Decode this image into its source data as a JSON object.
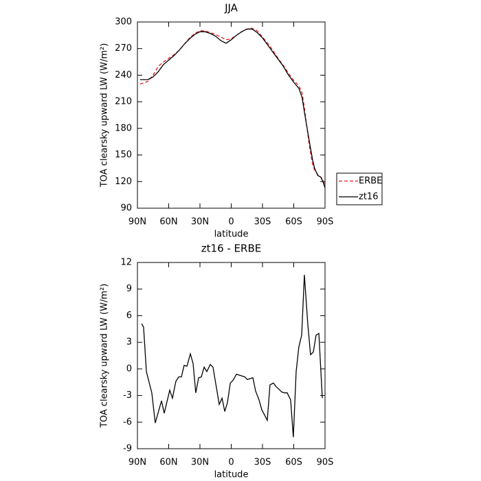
{
  "chart_data": [
    {
      "type": "line",
      "title": "JJA",
      "x_label": "latitude",
      "y_label": "TOA clearsky upward LW (W/m²)",
      "x": [
        87.5,
        80,
        75,
        70,
        65,
        60,
        55,
        50,
        45,
        40,
        35,
        30,
        25,
        20,
        15,
        10,
        5,
        0,
        -5,
        -10,
        -15,
        -20,
        -25,
        -30,
        -35,
        -40,
        -45,
        -50,
        -55,
        -60,
        -65,
        -68,
        -70,
        -75,
        -78,
        -80,
        -83,
        -86,
        -88,
        -90
      ],
      "series": [
        {
          "name": "ERBE",
          "color": "#e8191b",
          "line_style": "dashed",
          "values": [
            230,
            233,
            240,
            250,
            255,
            259,
            263,
            268,
            275,
            282,
            287,
            290,
            290,
            288,
            286,
            283,
            280,
            281,
            285,
            289,
            292,
            293,
            290,
            283,
            276,
            268,
            259,
            251,
            242,
            234,
            228,
            220,
            205,
            160,
            140,
            133,
            128,
            125,
            122,
            115
          ]
        },
        {
          "name": "zt16",
          "color": "#000000",
          "line_style": "solid",
          "values": [
            235,
            235,
            238,
            244,
            252,
            257,
            262,
            268,
            275,
            281,
            286,
            289,
            289,
            287,
            284,
            279,
            276,
            280,
            285,
            289,
            292,
            292,
            288,
            282,
            274,
            266,
            258,
            250,
            240,
            232,
            225,
            215,
            200,
            165,
            145,
            135,
            127,
            125,
            120,
            113
          ]
        }
      ],
      "xlim": [
        90,
        -90
      ],
      "xticks": [
        {
          "value": 90,
          "label": "90N"
        },
        {
          "value": 60,
          "label": "60N"
        },
        {
          "value": 30,
          "label": "30N"
        },
        0,
        {
          "value": -30,
          "label": "30S"
        },
        {
          "value": -60,
          "label": "60S"
        },
        {
          "value": -90,
          "label": "90S"
        }
      ],
      "ylim": [
        90,
        300
      ],
      "yticks": [
        90,
        120,
        150,
        180,
        210,
        240,
        270,
        300
      ],
      "legend": "outside-right"
    },
    {
      "type": "line",
      "title": "zt16 - ERBE",
      "x_label": "latitude",
      "y_label": "TOA clearsky upward LW (W/m²)",
      "x": [
        86.0,
        84.1,
        81.4,
        76.2,
        72.9,
        66.9,
        64.3,
        59.0,
        56.4,
        53.1,
        50.4,
        47.8,
        45.2,
        42.5,
        39.2,
        36.6,
        34.0,
        31.3,
        28.7,
        26.0,
        23.4,
        20.1,
        17.5,
        11.5,
        8.8,
        6.2,
        3.6,
        0.9,
        -1.7,
        -5.0,
        -7.6,
        -10.3,
        -12.9,
        -15.5,
        -18.1,
        -20.8,
        -23.4,
        -26.7,
        -29.3,
        -34.6,
        -37.2,
        -40.5,
        -43.1,
        -45.8,
        -48.4,
        -51.1,
        -53.7,
        -57.0,
        -59.6,
        -62.3,
        -64.9,
        -67.6,
        -70.2,
        -73.5,
        -76.1,
        -78.8,
        -81.4,
        -84.1,
        -87.4
      ],
      "values": [
        5.1,
        4.7,
        -0.3,
        -2.7,
        -6.1,
        -3.6,
        -5.0,
        -2.4,
        -3.3,
        -1.4,
        -0.9,
        -0.9,
        0.4,
        0.3,
        1.7,
        0.6,
        -2.7,
        -1.0,
        -0.9,
        0.2,
        -0.3,
        0.5,
        0.2,
        -4.0,
        -3.3,
        -4.8,
        -3.8,
        -1.6,
        -1.3,
        -0.6,
        -0.7,
        -0.8,
        -0.9,
        -1.2,
        -1.1,
        -1.0,
        -2.5,
        -3.5,
        -4.6,
        -5.8,
        -1.8,
        -1.6,
        -2.0,
        -2.3,
        -2.6,
        -2.7,
        -2.7,
        -3.5,
        -7.7,
        -0.3,
        2.5,
        3.8,
        10.6,
        5.0,
        1.6,
        1.9,
        3.8,
        4.0,
        -3.3
      ],
      "color": "#000000",
      "xlim": [
        90,
        -90
      ],
      "xticks": [
        {
          "value": 90,
          "label": "90N"
        },
        {
          "value": 60,
          "label": "60N"
        },
        {
          "value": 30,
          "label": "30N"
        },
        0,
        {
          "value": -30,
          "label": "30S"
        },
        {
          "value": -60,
          "label": "60S"
        },
        {
          "value": -90,
          "label": "90S"
        }
      ],
      "ylim": [
        -9,
        12
      ],
      "yticks": [
        -9,
        -6,
        -3,
        0,
        3,
        6,
        9,
        12
      ]
    }
  ]
}
